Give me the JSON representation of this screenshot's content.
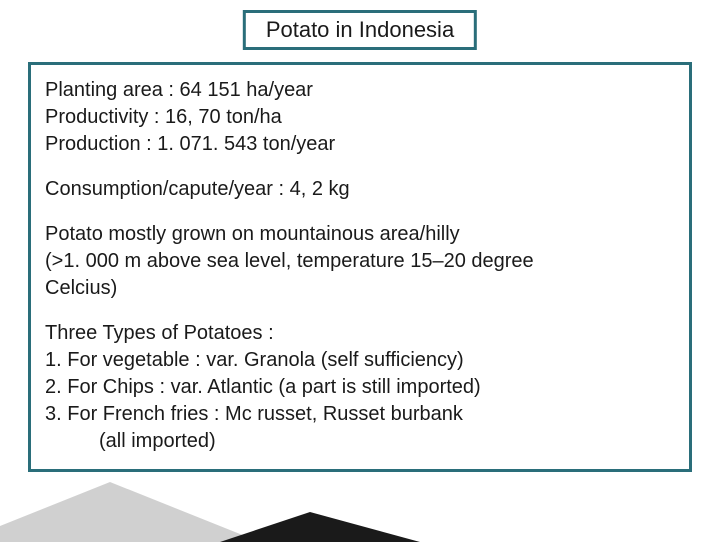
{
  "title": "Potato in Indonesia",
  "stats": {
    "planting": "Planting area :  64 151 ha/year",
    "productivity": "Productivity  : 16, 70 ton/ha",
    "production": "Production   : 1. 071. 543 ton/year"
  },
  "consumption": "Consumption/capute/year : 4, 2 kg",
  "growing_note": {
    "l1": "Potato mostly grown on mountainous area/hilly",
    "l2": "(>1. 000 m above sea level, temperature 15–20 degree",
    "l3": "Celcius)"
  },
  "types_heading": "Three Types of Potatoes :",
  "types": {
    "t1": "1. For vegetable : var. Granola (self sufficiency)",
    "t2": "2. For Chips : var. Atlantic (a part is still imported)",
    "t3": "3. For French fries : Mc russet, Russet burbank",
    "t3b": "(all imported)"
  },
  "colors": {
    "border": "#2a6e7a",
    "text": "#1a1a1a",
    "bg": "#ffffff",
    "deco_dark": "#1a1a1a",
    "deco_gray": "#c8c8c8"
  }
}
